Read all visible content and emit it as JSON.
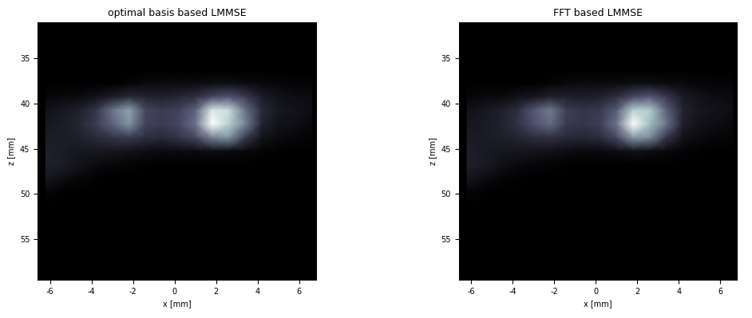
{
  "chart_data": [
    {
      "type": "heatmap",
      "title": "optimal basis based LMMSE",
      "x_label": "x [mm]",
      "y_label": "z [mm]",
      "color": "bone",
      "xlim": [
        -6.6,
        6.8
      ],
      "xticks": [
        -6,
        -4,
        -2,
        0,
        2,
        4,
        6
      ],
      "ylim": [
        59.5,
        31
      ],
      "yticks": [
        35,
        40,
        45,
        50,
        55
      ],
      "x": [
        -6.2,
        -5.4,
        -4.6,
        -3.8,
        -3.0,
        -2.2,
        -1.4,
        -0.6,
        0.2,
        1.0,
        1.8,
        2.6,
        3.4,
        4.2,
        5.0,
        5.8,
        6.6
      ],
      "y": [
        31.75,
        33.25,
        34.75,
        36.25,
        37.75,
        39.25,
        40.75,
        42.25,
        43.75,
        45.25,
        46.75,
        48.25,
        49.75,
        51.25,
        52.75,
        54.25,
        55.75,
        57.25,
        58.75
      ],
      "cells": [
        [
          0,
          0,
          0,
          0,
          0,
          0,
          0,
          0,
          0,
          0,
          0,
          0,
          0,
          0,
          0,
          0,
          0
        ],
        [
          0,
          0,
          0,
          0,
          0,
          0,
          0,
          0,
          0,
          0,
          0,
          0,
          0,
          0,
          0,
          0,
          0
        ],
        [
          0,
          0,
          0,
          0,
          0,
          0,
          0,
          0,
          0,
          0,
          0,
          0,
          0,
          0,
          0,
          0,
          0
        ],
        [
          0,
          0,
          0,
          0,
          0,
          0,
          0,
          0,
          0,
          0,
          0,
          0,
          0,
          0,
          0,
          0,
          0
        ],
        [
          0,
          0,
          0,
          0,
          0,
          2,
          4,
          5,
          5,
          5,
          6,
          6,
          5,
          4,
          3,
          2,
          2
        ],
        [
          3,
          4,
          5,
          8,
          12,
          18,
          15,
          14,
          16,
          20,
          30,
          35,
          25,
          12,
          8,
          6,
          5
        ],
        [
          8,
          10,
          14,
          22,
          45,
          60,
          30,
          25,
          28,
          40,
          85,
          80,
          45,
          18,
          10,
          8,
          6
        ],
        [
          10,
          12,
          16,
          25,
          40,
          55,
          28,
          25,
          30,
          45,
          95,
          75,
          50,
          15,
          8,
          6,
          4
        ],
        [
          12,
          12,
          14,
          18,
          22,
          25,
          20,
          18,
          22,
          30,
          50,
          55,
          25,
          8,
          5,
          3,
          2
        ],
        [
          14,
          12,
          10,
          10,
          10,
          8,
          6,
          5,
          5,
          5,
          6,
          5,
          4,
          2,
          1,
          0,
          0
        ],
        [
          14,
          12,
          8,
          5,
          3,
          2,
          1,
          0,
          0,
          0,
          0,
          0,
          0,
          0,
          0,
          0,
          0
        ],
        [
          10,
          6,
          3,
          1,
          0,
          0,
          0,
          0,
          0,
          0,
          0,
          0,
          0,
          0,
          0,
          0,
          0
        ],
        [
          3,
          1,
          0,
          0,
          0,
          0,
          0,
          0,
          0,
          0,
          0,
          0,
          0,
          0,
          0,
          0,
          0
        ],
        [
          0,
          0,
          0,
          0,
          0,
          0,
          0,
          0,
          0,
          0,
          0,
          0,
          0,
          0,
          0,
          0,
          0
        ],
        [
          0,
          0,
          0,
          0,
          0,
          0,
          0,
          0,
          0,
          0,
          0,
          0,
          0,
          0,
          0,
          0,
          0
        ],
        [
          0,
          0,
          0,
          0,
          0,
          0,
          0,
          0,
          0,
          0,
          0,
          0,
          0,
          0,
          0,
          0,
          0
        ],
        [
          0,
          0,
          0,
          0,
          0,
          0,
          0,
          0,
          0,
          0,
          0,
          0,
          0,
          0,
          0,
          0,
          0
        ],
        [
          0,
          0,
          0,
          0,
          0,
          0,
          0,
          0,
          0,
          0,
          0,
          0,
          0,
          0,
          0,
          0,
          0
        ],
        [
          0,
          0,
          0,
          0,
          0,
          0,
          0,
          0,
          0,
          0,
          0,
          0,
          0,
          0,
          0,
          0,
          0
        ]
      ]
    },
    {
      "type": "heatmap",
      "title": "FFT based LMMSE",
      "x_label": "x [mm]",
      "y_label": "z [mm]",
      "color": "bone",
      "xlim": [
        -6.6,
        6.8
      ],
      "xticks": [
        -6,
        -4,
        -2,
        0,
        2,
        4,
        6
      ],
      "ylim": [
        59.5,
        31
      ],
      "yticks": [
        35,
        40,
        45,
        50,
        55
      ],
      "x": [
        -6.2,
        -5.4,
        -4.6,
        -3.8,
        -3.0,
        -2.2,
        -1.4,
        -0.6,
        0.2,
        1.0,
        1.8,
        2.6,
        3.4,
        4.2,
        5.0,
        5.8,
        6.6
      ],
      "y": [
        31.75,
        33.25,
        34.75,
        36.25,
        37.75,
        39.25,
        40.75,
        42.25,
        43.75,
        45.25,
        46.75,
        48.25,
        49.75,
        51.25,
        52.75,
        54.25,
        55.75,
        57.25,
        58.75
      ],
      "cells": [
        [
          0,
          0,
          0,
          0,
          0,
          0,
          0,
          0,
          0,
          0,
          0,
          0,
          0,
          0,
          0,
          0,
          0
        ],
        [
          0,
          0,
          0,
          0,
          0,
          0,
          0,
          0,
          0,
          0,
          0,
          0,
          0,
          0,
          0,
          0,
          0
        ],
        [
          0,
          0,
          0,
          0,
          0,
          0,
          0,
          0,
          0,
          0,
          0,
          0,
          0,
          0,
          0,
          0,
          0
        ],
        [
          0,
          0,
          0,
          0,
          0,
          0,
          0,
          0,
          0,
          0,
          0,
          0,
          0,
          0,
          0,
          0,
          0
        ],
        [
          0,
          0,
          0,
          0,
          0,
          2,
          4,
          5,
          5,
          5,
          6,
          6,
          5,
          4,
          3,
          2,
          2
        ],
        [
          3,
          4,
          5,
          8,
          10,
          15,
          14,
          13,
          15,
          20,
          32,
          38,
          25,
          12,
          8,
          6,
          5
        ],
        [
          8,
          10,
          14,
          20,
          38,
          50,
          28,
          24,
          26,
          40,
          80,
          78,
          42,
          16,
          10,
          8,
          6
        ],
        [
          10,
          12,
          15,
          22,
          35,
          45,
          26,
          24,
          28,
          48,
          100,
          72,
          48,
          14,
          8,
          6,
          4
        ],
        [
          12,
          12,
          14,
          16,
          20,
          22,
          18,
          17,
          20,
          32,
          60,
          55,
          24,
          8,
          5,
          3,
          2
        ],
        [
          14,
          12,
          10,
          10,
          9,
          8,
          6,
          5,
          5,
          6,
          8,
          6,
          4,
          2,
          1,
          0,
          0
        ],
        [
          14,
          12,
          8,
          5,
          3,
          2,
          1,
          0,
          0,
          0,
          0,
          0,
          0,
          0,
          0,
          0,
          0
        ],
        [
          10,
          6,
          3,
          1,
          0,
          0,
          0,
          0,
          0,
          0,
          0,
          0,
          0,
          0,
          0,
          0,
          0
        ],
        [
          3,
          1,
          0,
          0,
          0,
          0,
          0,
          0,
          0,
          0,
          0,
          0,
          0,
          0,
          0,
          0,
          0
        ],
        [
          0,
          0,
          0,
          0,
          0,
          0,
          0,
          0,
          0,
          0,
          0,
          0,
          0,
          0,
          0,
          0,
          0
        ],
        [
          0,
          0,
          0,
          0,
          0,
          0,
          0,
          0,
          0,
          0,
          0,
          0,
          0,
          0,
          0,
          0,
          0
        ],
        [
          0,
          0,
          0,
          0,
          0,
          0,
          0,
          0,
          0,
          0,
          0,
          0,
          0,
          0,
          0,
          0,
          0
        ],
        [
          0,
          0,
          0,
          0,
          0,
          0,
          0,
          0,
          0,
          0,
          0,
          0,
          0,
          0,
          0,
          0,
          0
        ],
        [
          0,
          0,
          0,
          0,
          0,
          0,
          0,
          0,
          0,
          0,
          0,
          0,
          0,
          0,
          0,
          0,
          0
        ],
        [
          0,
          0,
          0,
          0,
          0,
          0,
          0,
          0,
          0,
          0,
          0,
          0,
          0,
          0,
          0,
          0,
          0
        ]
      ]
    }
  ]
}
